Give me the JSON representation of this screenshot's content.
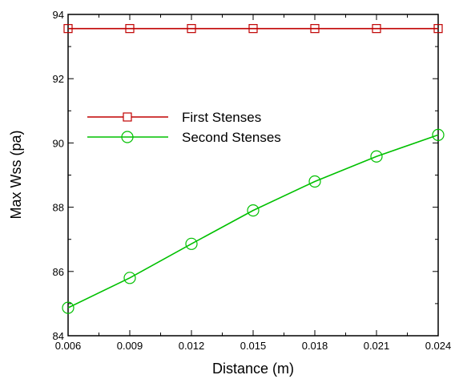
{
  "chart_data": {
    "type": "line",
    "title": "",
    "xlabel": "Distance (m)",
    "ylabel": "Max Wss (pa)",
    "xlim": [
      0.006,
      0.024
    ],
    "ylim": [
      84,
      94
    ],
    "x": [
      0.006,
      0.009,
      0.012,
      0.015,
      0.018,
      0.021,
      0.024
    ],
    "x_tick_labels": [
      "0.006",
      "0.009",
      "0.012",
      "0.015",
      "0.018",
      "0.021",
      "0.024"
    ],
    "y_ticks": [
      84,
      86,
      88,
      90,
      92,
      94
    ],
    "y_tick_labels": [
      "84",
      "86",
      "88",
      "90",
      "92",
      "94"
    ],
    "grid": false,
    "legend_position": "upper-left",
    "series": [
      {
        "name": "First Stenses",
        "color": "#c00000",
        "marker": "square",
        "values": [
          93.56,
          93.56,
          93.56,
          93.56,
          93.56,
          93.56,
          93.56
        ]
      },
      {
        "name": "Second Stenses",
        "color": "#00c000",
        "marker": "circle",
        "values": [
          84.87,
          85.8,
          86.86,
          87.9,
          88.8,
          89.58,
          90.25
        ]
      }
    ]
  }
}
